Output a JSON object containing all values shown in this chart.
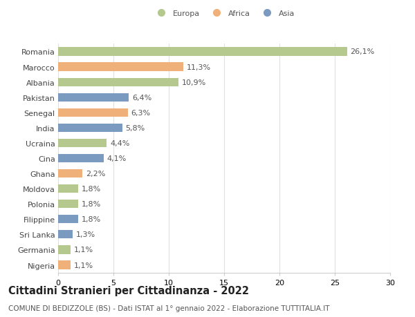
{
  "categories": [
    "Romania",
    "Marocco",
    "Albania",
    "Pakistan",
    "Senegal",
    "India",
    "Ucraina",
    "Cina",
    "Ghana",
    "Moldova",
    "Polonia",
    "Filippine",
    "Sri Lanka",
    "Germania",
    "Nigeria"
  ],
  "values": [
    26.1,
    11.3,
    10.9,
    6.4,
    6.3,
    5.8,
    4.4,
    4.1,
    2.2,
    1.8,
    1.8,
    1.8,
    1.3,
    1.1,
    1.1
  ],
  "continents": [
    "Europa",
    "Africa",
    "Europa",
    "Asia",
    "Africa",
    "Asia",
    "Europa",
    "Asia",
    "Africa",
    "Europa",
    "Europa",
    "Asia",
    "Asia",
    "Europa",
    "Africa"
  ],
  "continent_colors": {
    "Europa": "#b5c98e",
    "Africa": "#f0b07a",
    "Asia": "#7b9abf"
  },
  "legend_labels": [
    "Europa",
    "Africa",
    "Asia"
  ],
  "xlim": [
    0,
    30
  ],
  "xticks": [
    0,
    5,
    10,
    15,
    20,
    25,
    30
  ],
  "title": "Cittadini Stranieri per Cittadinanza - 2022",
  "subtitle": "COMUNE DI BEDIZZOLE (BS) - Dati ISTAT al 1° gennaio 2022 - Elaborazione TUTTITALIA.IT",
  "background_color": "#ffffff",
  "bar_height": 0.55,
  "label_fontsize": 8,
  "tick_fontsize": 8,
  "title_fontsize": 10.5,
  "subtitle_fontsize": 7.5,
  "grid_color": "#e0e0e0"
}
